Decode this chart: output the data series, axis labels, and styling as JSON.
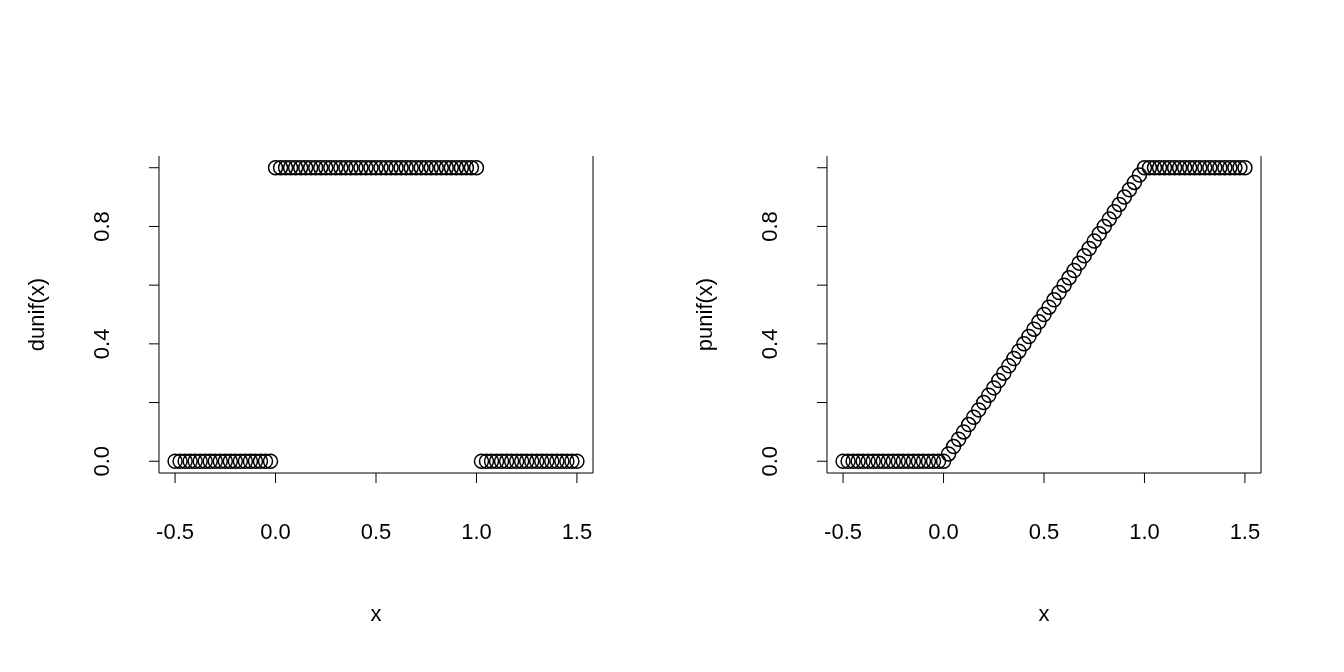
{
  "chart_data": [
    {
      "type": "scatter",
      "xlabel": "x",
      "ylabel": "dunif(x)",
      "marker": "circle",
      "xlim": [
        -0.58,
        1.58
      ],
      "ylim": [
        -0.04,
        1.04
      ],
      "xticks": [
        {
          "value": -0.5,
          "label": "-0.5"
        },
        {
          "value": 0,
          "label": "0.0"
        },
        {
          "value": 0.5,
          "label": "0.5"
        },
        {
          "value": 1,
          "label": "1.0"
        },
        {
          "value": 1.5,
          "label": "1.5"
        }
      ],
      "yticks": [
        {
          "value": 0,
          "label": "0.0"
        },
        {
          "value": 0.2,
          "label": null
        },
        {
          "value": 0.4,
          "label": "0.4"
        },
        {
          "value": 0.6,
          "label": null
        },
        {
          "value": 0.8,
          "label": "0.8"
        },
        {
          "value": 1,
          "label": null
        }
      ],
      "x": [
        -0.5,
        -0.475,
        -0.45,
        -0.425,
        -0.4,
        -0.375,
        -0.35,
        -0.325,
        -0.3,
        -0.275,
        -0.25,
        -0.225,
        -0.2,
        -0.175,
        -0.15,
        -0.125,
        -0.1,
        -0.075,
        -0.05,
        -0.025,
        0,
        0.025,
        0.05,
        0.075,
        0.1,
        0.125,
        0.15,
        0.175,
        0.2,
        0.225,
        0.25,
        0.275,
        0.3,
        0.325,
        0.35,
        0.375,
        0.4,
        0.425,
        0.45,
        0.475,
        0.5,
        0.525,
        0.55,
        0.575,
        0.6,
        0.625,
        0.65,
        0.675,
        0.7,
        0.725,
        0.75,
        0.775,
        0.8,
        0.825,
        0.85,
        0.875,
        0.9,
        0.925,
        0.95,
        0.975,
        1,
        1.025,
        1.05,
        1.075,
        1.1,
        1.125,
        1.15,
        1.175,
        1.2,
        1.225,
        1.25,
        1.275,
        1.3,
        1.325,
        1.35,
        1.375,
        1.4,
        1.425,
        1.45,
        1.475,
        1.5
      ],
      "series": [
        {
          "color": "#000000",
          "values": [
            0,
            0,
            0,
            0,
            0,
            0,
            0,
            0,
            0,
            0,
            0,
            0,
            0,
            0,
            0,
            0,
            0,
            0,
            0,
            0,
            1,
            1,
            1,
            1,
            1,
            1,
            1,
            1,
            1,
            1,
            1,
            1,
            1,
            1,
            1,
            1,
            1,
            1,
            1,
            1,
            1,
            1,
            1,
            1,
            1,
            1,
            1,
            1,
            1,
            1,
            1,
            1,
            1,
            1,
            1,
            1,
            1,
            1,
            1,
            1,
            1,
            0,
            0,
            0,
            0,
            0,
            0,
            0,
            0,
            0,
            0,
            0,
            0,
            0,
            0,
            0,
            0,
            0,
            0,
            0,
            0
          ]
        }
      ]
    },
    {
      "type": "scatter",
      "xlabel": "x",
      "ylabel": "punif(x)",
      "marker": "circle",
      "xlim": [
        -0.58,
        1.58
      ],
      "ylim": [
        -0.04,
        1.04
      ],
      "xticks": [
        {
          "value": -0.5,
          "label": "-0.5"
        },
        {
          "value": 0,
          "label": "0.0"
        },
        {
          "value": 0.5,
          "label": "0.5"
        },
        {
          "value": 1,
          "label": "1.0"
        },
        {
          "value": 1.5,
          "label": "1.5"
        }
      ],
      "yticks": [
        {
          "value": 0,
          "label": "0.0"
        },
        {
          "value": 0.2,
          "label": null
        },
        {
          "value": 0.4,
          "label": "0.4"
        },
        {
          "value": 0.6,
          "label": null
        },
        {
          "value": 0.8,
          "label": "0.8"
        },
        {
          "value": 1,
          "label": null
        }
      ],
      "x": [
        -0.5,
        -0.475,
        -0.45,
        -0.425,
        -0.4,
        -0.375,
        -0.35,
        -0.325,
        -0.3,
        -0.275,
        -0.25,
        -0.225,
        -0.2,
        -0.175,
        -0.15,
        -0.125,
        -0.1,
        -0.075,
        -0.05,
        -0.025,
        0,
        0.025,
        0.05,
        0.075,
        0.1,
        0.125,
        0.15,
        0.175,
        0.2,
        0.225,
        0.25,
        0.275,
        0.3,
        0.325,
        0.35,
        0.375,
        0.4,
        0.425,
        0.45,
        0.475,
        0.5,
        0.525,
        0.55,
        0.575,
        0.6,
        0.625,
        0.65,
        0.675,
        0.7,
        0.725,
        0.75,
        0.775,
        0.8,
        0.825,
        0.85,
        0.875,
        0.9,
        0.925,
        0.95,
        0.975,
        1,
        1.025,
        1.05,
        1.075,
        1.1,
        1.125,
        1.15,
        1.175,
        1.2,
        1.225,
        1.25,
        1.275,
        1.3,
        1.325,
        1.35,
        1.375,
        1.4,
        1.425,
        1.45,
        1.475,
        1.5
      ],
      "series": [
        {
          "color": "#000000",
          "values": [
            0,
            0,
            0,
            0,
            0,
            0,
            0,
            0,
            0,
            0,
            0,
            0,
            0,
            0,
            0,
            0,
            0,
            0,
            0,
            0,
            0,
            0.025,
            0.05,
            0.075,
            0.1,
            0.125,
            0.15,
            0.175,
            0.2,
            0.225,
            0.25,
            0.275,
            0.3,
            0.325,
            0.35,
            0.375,
            0.4,
            0.425,
            0.45,
            0.475,
            0.5,
            0.525,
            0.55,
            0.575,
            0.6,
            0.625,
            0.65,
            0.675,
            0.7,
            0.725,
            0.75,
            0.775,
            0.8,
            0.825,
            0.85,
            0.875,
            0.9,
            0.925,
            0.95,
            0.975,
            1,
            1,
            1,
            1,
            1,
            1,
            1,
            1,
            1,
            1,
            1,
            1,
            1,
            1,
            1,
            1,
            1,
            1,
            1,
            1,
            1
          ]
        }
      ]
    }
  ]
}
